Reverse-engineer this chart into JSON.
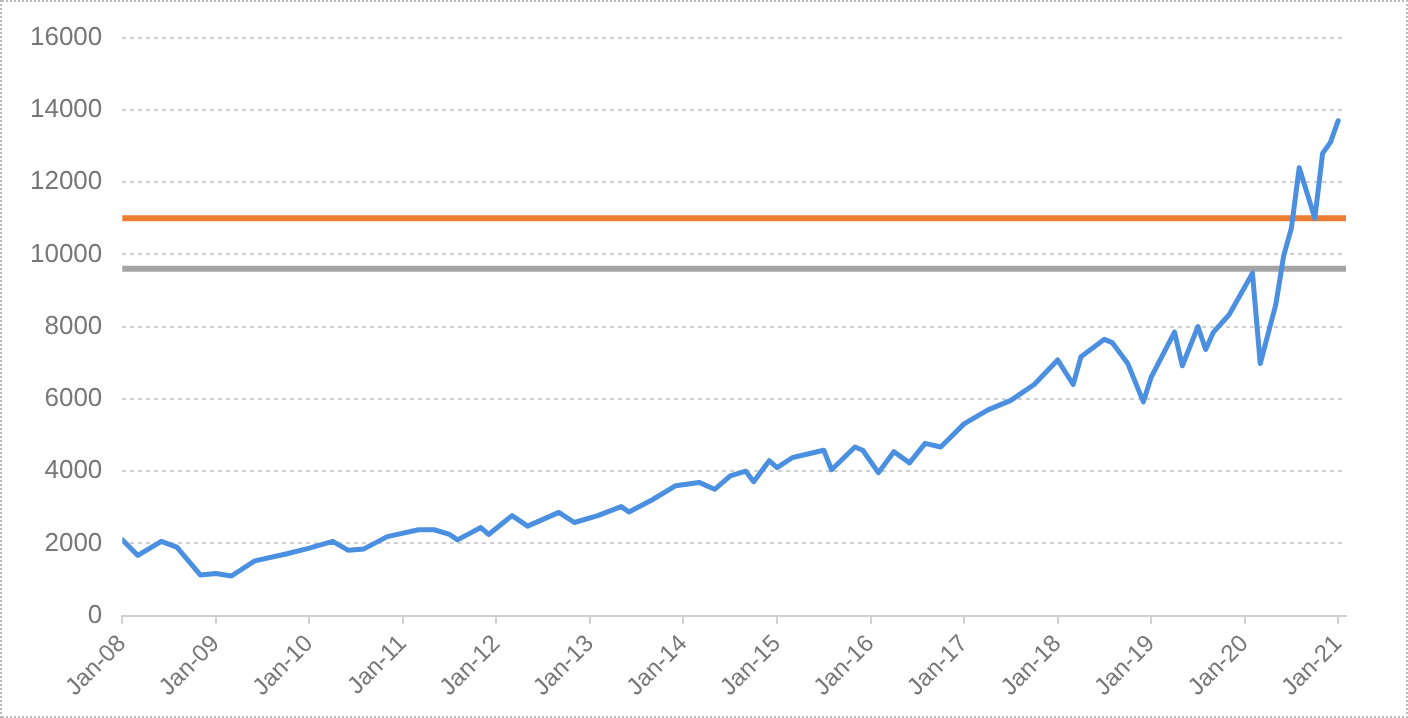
{
  "chart_data": {
    "type": "line",
    "x": [
      "2008-01",
      "2008-03",
      "2008-06",
      "2008-08",
      "2008-11",
      "2009-01",
      "2009-03",
      "2009-06",
      "2009-10",
      "2010-01",
      "2010-04",
      "2010-06",
      "2010-08",
      "2010-11",
      "2011-03",
      "2011-05",
      "2011-07",
      "2011-08",
      "2011-11",
      "2011-12",
      "2012-03",
      "2012-05",
      "2012-09",
      "2012-11",
      "2013-02",
      "2013-05",
      "2013-06",
      "2013-09",
      "2013-12",
      "2014-03",
      "2014-05",
      "2014-07",
      "2014-09",
      "2014-10",
      "2014-12",
      "2015-01",
      "2015-03",
      "2015-07",
      "2015-08",
      "2015-11",
      "2015-12",
      "2016-02",
      "2016-04",
      "2016-06",
      "2016-08",
      "2016-10",
      "2017-01",
      "2017-04",
      "2017-07",
      "2017-10",
      "2018-01",
      "2018-03",
      "2018-04",
      "2018-07",
      "2018-08",
      "2018-10",
      "2018-12",
      "2019-01",
      "2019-04",
      "2019-05",
      "2019-07",
      "2019-08",
      "2019-09",
      "2019-11",
      "2020-02",
      "2020-03",
      "2020-05",
      "2020-06",
      "2020-07",
      "2020-08",
      "2020-10",
      "2020-11",
      "2020-12",
      "2021-01"
    ],
    "series": [
      {
        "color": "#4a8fe0",
        "values": [
          2100,
          1670,
          2060,
          1900,
          1130,
          1170,
          1100,
          1520,
          1710,
          1870,
          2060,
          1810,
          1850,
          2190,
          2380,
          2380,
          2250,
          2100,
          2440,
          2250,
          2770,
          2480,
          2860,
          2580,
          2770,
          3020,
          2870,
          3210,
          3600,
          3690,
          3500,
          3870,
          4000,
          3710,
          4290,
          4100,
          4380,
          4580,
          4040,
          4670,
          4580,
          3960,
          4540,
          4230,
          4770,
          4670,
          5310,
          5690,
          5960,
          6400,
          7080,
          6400,
          7170,
          7650,
          7560,
          6980,
          5920,
          6600,
          7850,
          6920,
          8000,
          7370,
          7850,
          8330,
          9480,
          6980,
          8620,
          9960,
          10730,
          12400,
          11000,
          12800,
          13100,
          13700
        ]
      }
    ],
    "xlim": [
      "2008-01",
      "2021-02"
    ],
    "xticks": [
      {
        "value": "2008-01",
        "label": "Jan-08"
      },
      {
        "value": "2009-01",
        "label": "Jan-09"
      },
      {
        "value": "2010-01",
        "label": "Jan-10"
      },
      {
        "value": "2011-01",
        "label": "Jan-11"
      },
      {
        "value": "2012-01",
        "label": "Jan-12"
      },
      {
        "value": "2013-01",
        "label": "Jan-13"
      },
      {
        "value": "2014-01",
        "label": "Jan-14"
      },
      {
        "value": "2015-01",
        "label": "Jan-15"
      },
      {
        "value": "2016-01",
        "label": "Jan-16"
      },
      {
        "value": "2017-01",
        "label": "Jan-17"
      },
      {
        "value": "2018-01",
        "label": "Jan-18"
      },
      {
        "value": "2019-01",
        "label": "Jan-19"
      },
      {
        "value": "2020-01",
        "label": "Jan-20"
      },
      {
        "value": "2021-01",
        "label": "Jan-21"
      }
    ],
    "ylim": [
      0,
      16000
    ],
    "yticks": [
      0,
      2000,
      4000,
      6000,
      8000,
      10000,
      12000,
      14000,
      16000
    ],
    "ref_lines": [
      {
        "axis": "y",
        "value": 11000,
        "color": "#ed7d31"
      },
      {
        "axis": "y",
        "value": 9600,
        "color": "#a5a5a5"
      }
    ],
    "grid": "y",
    "legend": false,
    "marker": "none",
    "line_style": "solid"
  }
}
